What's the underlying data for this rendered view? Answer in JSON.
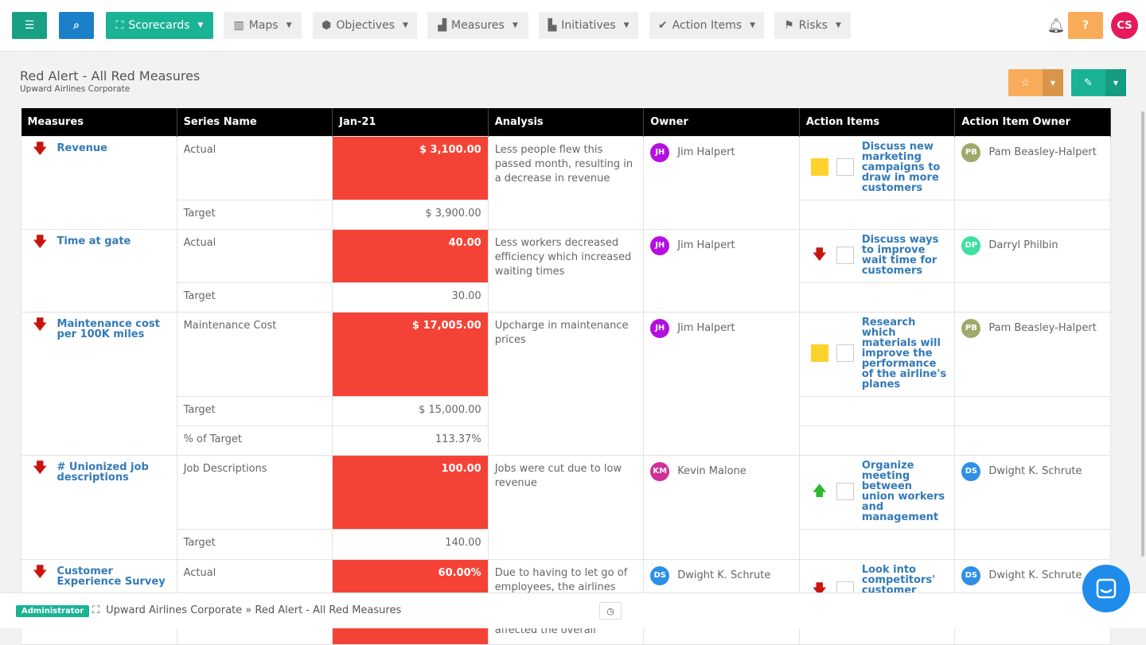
{
  "nav": {
    "menu_icon": "bars-icon",
    "search_icon": "search-icon",
    "items": [
      {
        "label": "Scorecards",
        "icon": "sitemap-icon"
      },
      {
        "label": "Maps",
        "icon": "map-icon"
      },
      {
        "label": "Objectives",
        "icon": "cube-icon"
      },
      {
        "label": "Measures",
        "icon": "bar-chart-icon"
      },
      {
        "label": "Initiatives",
        "icon": "industry-icon"
      },
      {
        "label": "Action Items",
        "icon": "check-icon"
      },
      {
        "label": "Risks",
        "icon": "flag-icon"
      }
    ],
    "help": "?",
    "user_initials": "CS"
  },
  "page": {
    "title": "Red Alert - All Red Measures",
    "subtitle": "Upward Airlines Corporate"
  },
  "table": {
    "headers": [
      "Measures",
      "Series Name",
      "Jan-21",
      "Analysis",
      "Owner",
      "Action Items",
      "Action Item Owner"
    ],
    "rows": [
      {
        "measure": "Revenue",
        "trend": "down",
        "analysis": "Less people flew this passed month, resulting in a decrease in revenue",
        "owner": {
          "initials": "JH",
          "name": "Jim Halpert",
          "color": "#b40fe0"
        },
        "series": [
          {
            "name": "Actual",
            "value": "$ 3,100.00",
            "red": true
          },
          {
            "name": "Target",
            "value": "$ 3,900.00"
          }
        ],
        "action": {
          "status": "yellow",
          "text": "Discuss new marketing campaigns to draw in more customers",
          "owner": {
            "initials": "PB",
            "name": "Pam Beasley-Halpert",
            "color": "#a0a86a"
          }
        }
      },
      {
        "measure": "Time at gate",
        "trend": "down",
        "analysis": "Less workers decreased efficiency which increased waiting times",
        "owner": {
          "initials": "JH",
          "name": "Jim Halpert",
          "color": "#b40fe0"
        },
        "series": [
          {
            "name": "Actual",
            "value": "40.00",
            "red": true
          },
          {
            "name": "Target",
            "value": "30.00"
          }
        ],
        "action": {
          "status": "down",
          "text": "Discuss ways to improve wait time for customers",
          "owner": {
            "initials": "DP",
            "name": "Darryl Philbin",
            "color": "#3ee0a0"
          }
        }
      },
      {
        "measure": "Maintenance cost per 100K miles",
        "trend": "down",
        "analysis": "Upcharge in maintenance prices",
        "owner": {
          "initials": "JH",
          "name": "Jim Halpert",
          "color": "#b40fe0"
        },
        "series": [
          {
            "name": "Maintenance Cost",
            "value": "$ 17,005.00",
            "red": true
          },
          {
            "name": "Target",
            "value": "$ 15,000.00"
          },
          {
            "name": "% of Target",
            "value": "113.37%"
          }
        ],
        "action": {
          "status": "yellow",
          "text": "Research which materials will improve the performance of the airline's planes",
          "owner": {
            "initials": "PB",
            "name": "Pam Beasley-Halpert",
            "color": "#a0a86a"
          }
        }
      },
      {
        "measure": "# Unionized job descriptions",
        "trend": "down",
        "analysis": "Jobs were cut due to low revenue",
        "owner": {
          "initials": "KM",
          "name": "Kevin Malone",
          "color": "#d0309a"
        },
        "series": [
          {
            "name": "Job Descriptions",
            "value": "100.00",
            "red": true
          },
          {
            "name": "Target",
            "value": "140.00"
          }
        ],
        "action": {
          "status": "up",
          "text": "Organize meeting between union workers and management",
          "owner": {
            "initials": "DS",
            "name": "Dwight K. Schrute",
            "color": "#2f8fe8"
          }
        }
      },
      {
        "measure": "Customer Experience Survey",
        "trend": "down",
        "analysis": "Due to having to let go of employees, the airlines productivity has decreased. This has affected the overall",
        "owner": {
          "initials": "DS",
          "name": "Dwight K. Schrute",
          "color": "#2f8fe8"
        },
        "series": [
          {
            "name": "Actual",
            "value": "60.00%",
            "red": true
          }
        ],
        "action": {
          "status": "down",
          "text": "Look into competitors' customer experience surveys",
          "owner": {
            "initials": "DS",
            "name": "Dwight K. Schrute",
            "color": "#2f8fe8"
          }
        }
      }
    ]
  },
  "footer": {
    "role": "Administrator",
    "breadcrumb": "Upward Airlines Corporate » Red Alert - All Red Measures"
  }
}
